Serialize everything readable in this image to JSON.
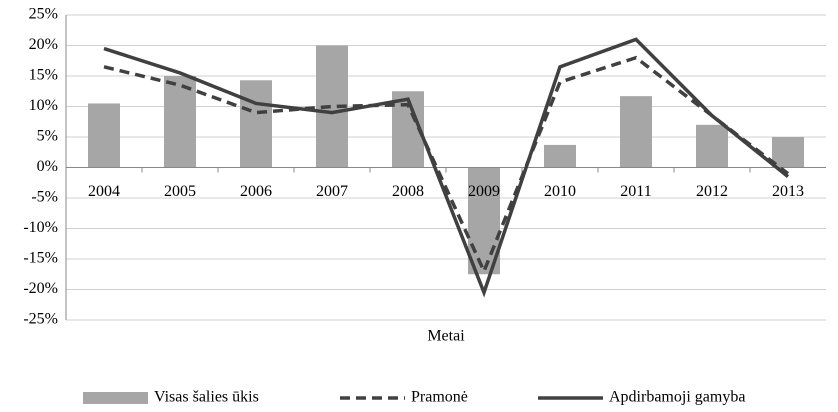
{
  "chart_data": {
    "type": "bar",
    "x_label": "Metai",
    "categories": [
      "2004",
      "2005",
      "2006",
      "2007",
      "2008",
      "2009",
      "2010",
      "2011",
      "2012",
      "2013"
    ],
    "series": [
      {
        "name": "Visas šalies ūkis",
        "type": "bar",
        "color": "#a6a6a6",
        "values": [
          10.5,
          15,
          14.3,
          20,
          12.5,
          -17.5,
          3.7,
          11.7,
          7,
          5
        ]
      },
      {
        "name": "Pramonė",
        "type": "line",
        "dash": true,
        "color": "#404040",
        "values": [
          16.5,
          13.5,
          9,
          10,
          10.3,
          -17,
          14,
          18,
          8.5,
          -1
        ]
      },
      {
        "name": "Apdirbamoji gamyba",
        "type": "line",
        "dash": false,
        "color": "#404040",
        "values": [
          19.5,
          15.5,
          10.5,
          9,
          11.2,
          -20.5,
          16.5,
          21,
          8.5,
          -1.5
        ]
      }
    ],
    "ylim": [
      -25,
      25
    ],
    "yticks": [
      {
        "value": -25,
        "label": "-25%"
      },
      {
        "value": -20,
        "label": "-20%"
      },
      {
        "value": -15,
        "label": "-15%"
      },
      {
        "value": -10,
        "label": "-10%"
      },
      {
        "value": -5,
        "label": "-5%"
      },
      {
        "value": 0,
        "label": "0%"
      },
      {
        "value": 5,
        "label": "5%"
      },
      {
        "value": 10,
        "label": "10%"
      },
      {
        "value": 15,
        "label": "15%"
      },
      {
        "value": 20,
        "label": "20%"
      },
      {
        "value": 25,
        "label": "25%"
      }
    ],
    "grid": true,
    "legend": "bottom"
  }
}
